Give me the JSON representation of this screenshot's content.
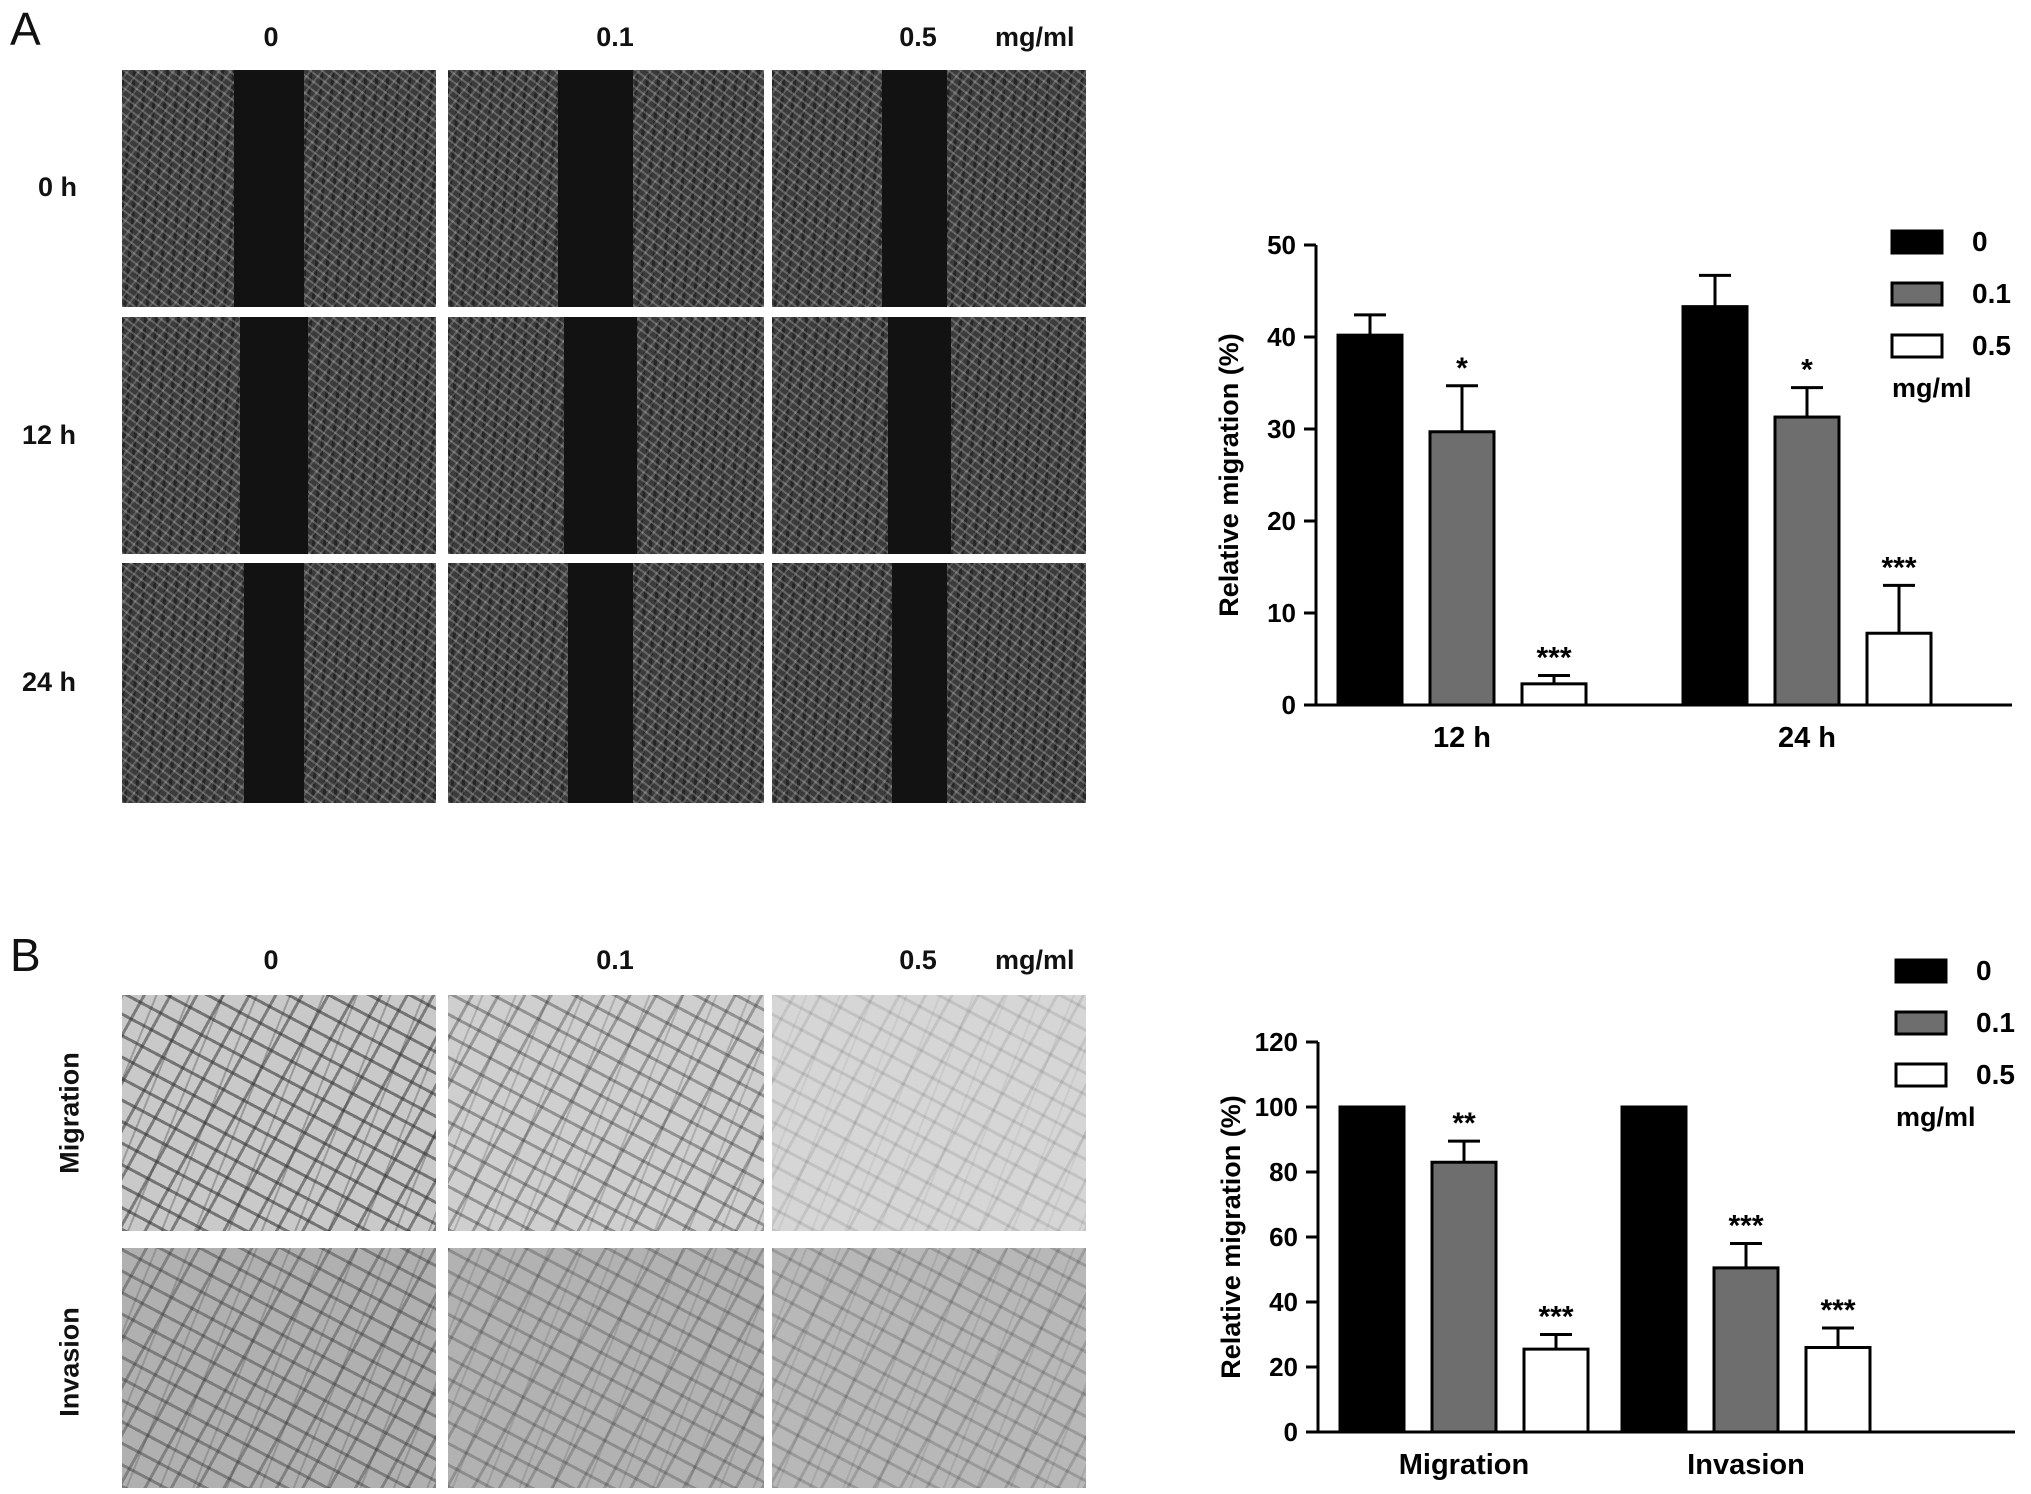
{
  "panelA": {
    "letter": "A",
    "columns": [
      "0",
      "0.1",
      "0.5"
    ],
    "unit": "mg/ml",
    "rows": [
      "0 h",
      "12 h",
      "24 h"
    ]
  },
  "panelB": {
    "letter": "B",
    "columns": [
      "0",
      "0.1",
      "0.5"
    ],
    "unit": "mg/ml",
    "rows": [
      "Migration",
      "Invasion"
    ]
  },
  "colors": {
    "c0": "#000000",
    "c01": "#6e6e6e",
    "c05": "#ffffff",
    "axis": "#000000"
  },
  "chart_data": [
    {
      "type": "bar",
      "categories": [
        "12 h",
        "24 h"
      ],
      "ylabel": "Relative  migration  (%)",
      "ylim": [
        0,
        50
      ],
      "yticks": [
        0,
        10,
        20,
        30,
        40,
        50
      ],
      "legend_title": "mg/ml",
      "legend_position": "top-right",
      "series": [
        {
          "name": "0",
          "values": [
            40.2,
            43.3
          ],
          "errors": [
            2.2,
            3.4
          ],
          "sig": [
            "",
            ""
          ]
        },
        {
          "name": "0.1",
          "values": [
            29.7,
            31.3
          ],
          "errors": [
            5.0,
            3.2
          ],
          "sig": [
            "*",
            "*"
          ]
        },
        {
          "name": "0.5",
          "values": [
            2.3,
            7.8
          ],
          "errors": [
            0.9,
            5.2
          ],
          "sig": [
            "***",
            "***"
          ]
        }
      ]
    },
    {
      "type": "bar",
      "categories": [
        "Migration",
        "Invasion"
      ],
      "ylabel": "Relative  migration  (%)",
      "ylim": [
        0,
        120
      ],
      "yticks": [
        0,
        20,
        40,
        60,
        80,
        100,
        120
      ],
      "legend_title": "mg/ml",
      "legend_position": "top-right",
      "series": [
        {
          "name": "0",
          "values": [
            100,
            100
          ],
          "errors": [
            0,
            0
          ],
          "sig": [
            "",
            ""
          ]
        },
        {
          "name": "0.1",
          "values": [
            83,
            50.5
          ],
          "errors": [
            6.5,
            7.5
          ],
          "sig": [
            "**",
            "***"
          ]
        },
        {
          "name": "0.5",
          "values": [
            25.5,
            26
          ],
          "errors": [
            4.5,
            6
          ],
          "sig": [
            "***",
            "***"
          ]
        }
      ]
    }
  ]
}
